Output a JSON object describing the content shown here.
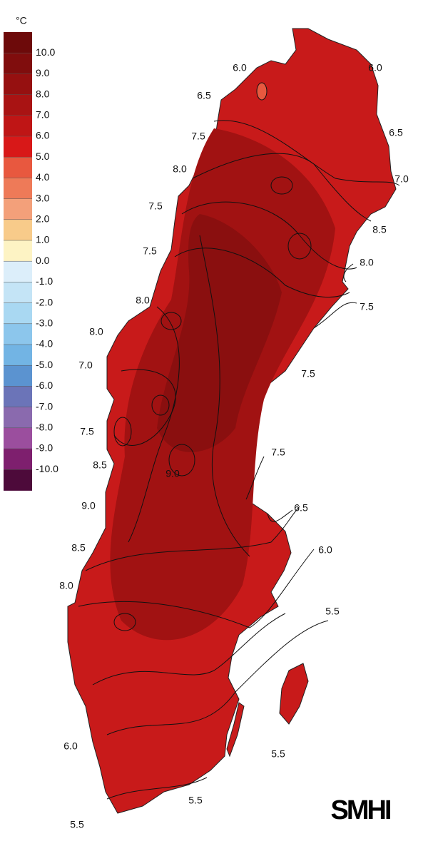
{
  "legend": {
    "unit": "°C",
    "labels": [
      "10.0",
      "9.0",
      "8.0",
      "7.0",
      "6.0",
      "5.0",
      "4.0",
      "3.0",
      "2.0",
      "1.0",
      "0.0",
      "-1.0",
      "-2.0",
      "-3.0",
      "-4.0",
      "-5.0",
      "-6.0",
      "-7.0",
      "-8.0",
      "-9.0",
      "-10.0"
    ],
    "colors": [
      "#6d0a0a",
      "#800d0d",
      "#961010",
      "#a91313",
      "#bf1515",
      "#d81818",
      "#e8583f",
      "#ee7a58",
      "#f3a07a",
      "#f8cb8a",
      "#fdf3c4",
      "#dceefa",
      "#c4e4f6",
      "#a9d8f2",
      "#8cc6ec",
      "#72b4e4",
      "#5b93d0",
      "#6b74b8",
      "#8a6aae",
      "#9b4e9e",
      "#7e1f6e",
      "#4d0a3a"
    ]
  },
  "map_color": "#c81a1a",
  "contour_labels": [
    "6.0",
    "6.0",
    "6.5",
    "6.5",
    "7.5",
    "8.0",
    "7.0",
    "7.5",
    "8.5",
    "7.5",
    "8.0",
    "8.0",
    "7.5",
    "8.0",
    "7.5",
    "7.0",
    "7.5",
    "7.5",
    "8.5",
    "9.0",
    "9.0",
    "6.5",
    "8.5",
    "6.0",
    "8.0",
    "5.5",
    "6.0",
    "5.5",
    "5.5",
    "5.5"
  ],
  "logo": "SMHI"
}
